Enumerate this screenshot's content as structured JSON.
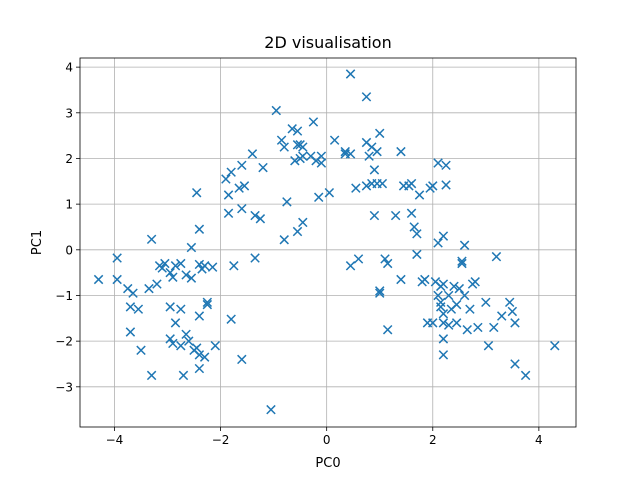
{
  "chart_data": {
    "type": "scatter",
    "title": "2D visualisation",
    "xlabel": "PC0",
    "ylabel": "PC1",
    "xlim": [
      -4.65,
      4.7
    ],
    "ylim": [
      -3.88,
      4.2
    ],
    "xticks": [
      -4,
      -2,
      0,
      2,
      4
    ],
    "yticks": [
      -3,
      -2,
      -1,
      0,
      1,
      2,
      3,
      4
    ],
    "grid": true,
    "marker": "x",
    "color": "#1f77b4",
    "points": [
      [
        -4.3,
        -0.65
      ],
      [
        -3.95,
        -0.18
      ],
      [
        -3.95,
        -0.65
      ],
      [
        -3.75,
        -0.85
      ],
      [
        -3.65,
        -0.95
      ],
      [
        -3.7,
        -1.25
      ],
      [
        -3.55,
        -1.3
      ],
      [
        -3.7,
        -1.8
      ],
      [
        -3.5,
        -2.2
      ],
      [
        -3.3,
        -2.75
      ],
      [
        -3.3,
        0.23
      ],
      [
        -3.15,
        -0.35
      ],
      [
        -3.05,
        -0.3
      ],
      [
        -2.95,
        -0.5
      ],
      [
        -2.85,
        -0.35
      ],
      [
        -2.75,
        -0.3
      ],
      [
        -2.65,
        -0.55
      ],
      [
        -2.55,
        -0.62
      ],
      [
        -2.9,
        -0.6
      ],
      [
        -2.95,
        -1.25
      ],
      [
        -2.75,
        -1.3
      ],
      [
        -2.85,
        -1.6
      ],
      [
        -2.65,
        -1.85
      ],
      [
        -2.95,
        -1.95
      ],
      [
        -2.9,
        -2.05
      ],
      [
        -2.6,
        -2.0
      ],
      [
        -2.5,
        -2.2
      ],
      [
        -2.45,
        -2.15
      ],
      [
        -2.4,
        -2.3
      ],
      [
        -2.3,
        -2.35
      ],
      [
        -2.4,
        -2.6
      ],
      [
        -2.7,
        -2.75
      ],
      [
        -2.75,
        -2.1
      ],
      [
        -2.4,
        -1.45
      ],
      [
        -2.25,
        -1.15
      ],
      [
        -2.25,
        -1.2
      ],
      [
        -2.55,
        0.05
      ],
      [
        -2.4,
        0.45
      ],
      [
        -2.4,
        -0.32
      ],
      [
        -2.3,
        -0.35
      ],
      [
        -2.35,
        -0.42
      ],
      [
        -2.15,
        -0.38
      ],
      [
        -2.45,
        1.25
      ],
      [
        -3.2,
        -0.75
      ],
      [
        -3.1,
        -0.4
      ],
      [
        -2.1,
        -2.1
      ],
      [
        -1.9,
        1.55
      ],
      [
        -1.8,
        1.7
      ],
      [
        -1.85,
        0.8
      ],
      [
        -1.85,
        1.2
      ],
      [
        -1.65,
        1.35
      ],
      [
        -1.6,
        0.9
      ],
      [
        -1.55,
        1.4
      ],
      [
        -1.6,
        1.85
      ],
      [
        -1.4,
        2.1
      ],
      [
        -1.35,
        0.75
      ],
      [
        -1.25,
        0.68
      ],
      [
        -1.2,
        1.8
      ],
      [
        -1.35,
        -0.18
      ],
      [
        -1.6,
        -2.4
      ],
      [
        -1.8,
        -1.52
      ],
      [
        -1.05,
        -3.5
      ],
      [
        -0.95,
        3.05
      ],
      [
        -0.85,
        2.4
      ],
      [
        -0.8,
        2.25
      ],
      [
        -0.75,
        1.05
      ],
      [
        -0.8,
        0.22
      ],
      [
        -0.65,
        2.65
      ],
      [
        -0.55,
        2.6
      ],
      [
        -0.55,
        2.3
      ],
      [
        -0.5,
        2.3
      ],
      [
        -0.45,
        2.25
      ],
      [
        -0.45,
        2.05
      ],
      [
        -0.5,
        2.0
      ],
      [
        -0.6,
        1.95
      ],
      [
        -0.55,
        0.4
      ],
      [
        -0.45,
        0.6
      ],
      [
        -0.3,
        2.05
      ],
      [
        -0.25,
        2.8
      ],
      [
        -0.2,
        1.95
      ],
      [
        -0.1,
        1.9
      ],
      [
        -0.1,
        2.05
      ],
      [
        -0.15,
        1.15
      ],
      [
        0.05,
        1.25
      ],
      [
        0.15,
        2.4
      ],
      [
        0.35,
        2.15
      ],
      [
        0.35,
        2.1
      ],
      [
        0.45,
        3.85
      ],
      [
        0.45,
        2.1
      ],
      [
        0.45,
        -0.35
      ],
      [
        0.55,
        1.35
      ],
      [
        0.6,
        -0.2
      ],
      [
        0.75,
        3.35
      ],
      [
        0.75,
        2.35
      ],
      [
        0.85,
        2.25
      ],
      [
        0.8,
        2.05
      ],
      [
        0.9,
        1.75
      ],
      [
        0.95,
        2.15
      ],
      [
        1.0,
        2.55
      ],
      [
        0.75,
        1.4
      ],
      [
        0.85,
        1.45
      ],
      [
        0.95,
        1.45
      ],
      [
        1.05,
        1.45
      ],
      [
        0.9,
        0.75
      ],
      [
        1.0,
        -0.9
      ],
      [
        1.0,
        -0.95
      ],
      [
        1.1,
        -0.2
      ],
      [
        1.15,
        -0.3
      ],
      [
        1.15,
        -1.75
      ],
      [
        1.3,
        0.75
      ],
      [
        1.4,
        -0.65
      ],
      [
        1.45,
        1.4
      ],
      [
        1.4,
        2.15
      ],
      [
        1.55,
        1.4
      ],
      [
        1.6,
        1.45
      ],
      [
        1.6,
        0.8
      ],
      [
        1.65,
        0.5
      ],
      [
        1.7,
        0.35
      ],
      [
        1.7,
        -0.1
      ],
      [
        1.75,
        1.2
      ],
      [
        1.8,
        -0.7
      ],
      [
        1.85,
        -0.65
      ],
      [
        1.9,
        -1.6
      ],
      [
        1.95,
        1.35
      ],
      [
        2.0,
        1.4
      ],
      [
        2.0,
        -1.6
      ],
      [
        2.05,
        -0.7
      ],
      [
        2.1,
        1.9
      ],
      [
        2.1,
        -1.0
      ],
      [
        2.15,
        -1.15
      ],
      [
        2.2,
        -0.75
      ],
      [
        2.15,
        -0.8
      ],
      [
        2.15,
        -1.25
      ],
      [
        2.2,
        -1.4
      ],
      [
        2.2,
        -2.3
      ],
      [
        2.2,
        -1.95
      ],
      [
        2.2,
        -1.6
      ],
      [
        2.25,
        1.85
      ],
      [
        2.25,
        1.42
      ],
      [
        2.2,
        0.3
      ],
      [
        2.1,
        0.15
      ],
      [
        2.3,
        -1.0
      ],
      [
        2.35,
        -1.3
      ],
      [
        2.4,
        -0.8
      ],
      [
        2.45,
        -1.2
      ],
      [
        2.5,
        -0.85
      ],
      [
        2.55,
        -0.25
      ],
      [
        2.55,
        -0.3
      ],
      [
        2.6,
        0.1
      ],
      [
        2.6,
        -1.0
      ],
      [
        2.65,
        -1.75
      ],
      [
        2.7,
        -1.3
      ],
      [
        2.75,
        -0.75
      ],
      [
        2.8,
        -0.7
      ],
      [
        2.85,
        -1.7
      ],
      [
        3.0,
        -1.15
      ],
      [
        3.05,
        -2.1
      ],
      [
        3.15,
        -1.7
      ],
      [
        3.2,
        -0.15
      ],
      [
        3.3,
        -1.45
      ],
      [
        3.45,
        -1.15
      ],
      [
        3.5,
        -1.35
      ],
      [
        3.55,
        -1.6
      ],
      [
        3.55,
        -2.5
      ],
      [
        3.75,
        -2.75
      ],
      [
        4.3,
        -2.1
      ],
      [
        -1.75,
        -0.35
      ],
      [
        -3.35,
        -0.85
      ],
      [
        2.3,
        -1.65
      ],
      [
        2.45,
        -1.6
      ]
    ]
  }
}
